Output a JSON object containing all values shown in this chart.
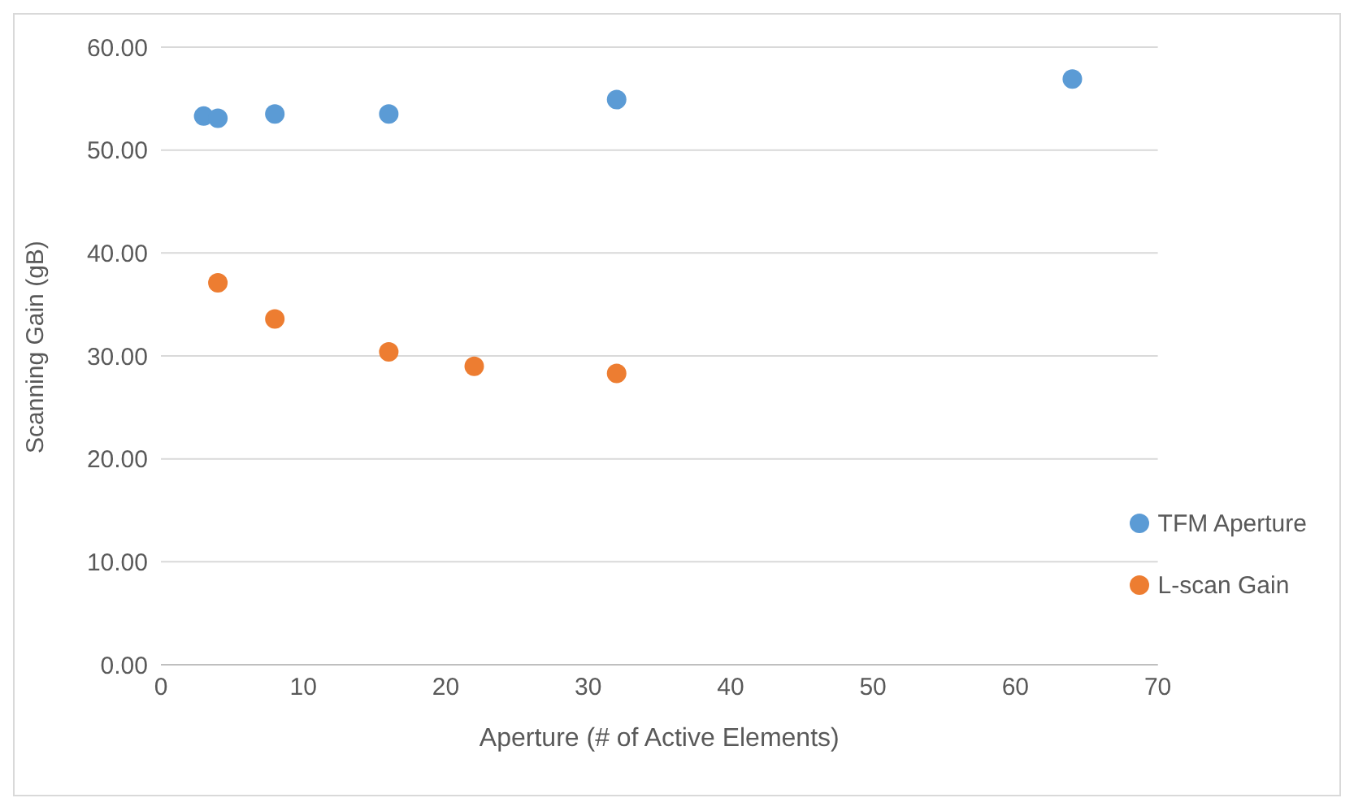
{
  "chart_data": {
    "type": "scatter",
    "xlabel": "Aperture (# of Active Elements)",
    "ylabel": "Scanning Gain (gB)",
    "series": [
      {
        "name": "TFM Aperture",
        "color": "#5b9bd5",
        "x": [
          3,
          4,
          8,
          16,
          32,
          64
        ],
        "values": [
          53.3,
          53.1,
          53.5,
          53.5,
          54.9,
          56.9
        ]
      },
      {
        "name": "L-scan Gain",
        "color": "#ed7d31",
        "x": [
          4,
          8,
          16,
          22,
          32
        ],
        "values": [
          37.1,
          33.6,
          30.4,
          29.0,
          28.3
        ]
      }
    ],
    "xlim": [
      0,
      70
    ],
    "xticks": [
      0,
      10,
      20,
      30,
      40,
      50,
      60,
      70
    ],
    "ylim": [
      0,
      60
    ],
    "yticks": [
      {
        "value": 0,
        "label": "0.00"
      },
      {
        "value": 10,
        "label": "10.00"
      },
      {
        "value": 20,
        "label": "20.00"
      },
      {
        "value": 30,
        "label": "30.00"
      },
      {
        "value": 40,
        "label": "40.00"
      },
      {
        "value": 50,
        "label": "50.00"
      },
      {
        "value": 60,
        "label": "60.00"
      }
    ],
    "grid": "y",
    "legend": "bottom right",
    "marker": "circle"
  }
}
